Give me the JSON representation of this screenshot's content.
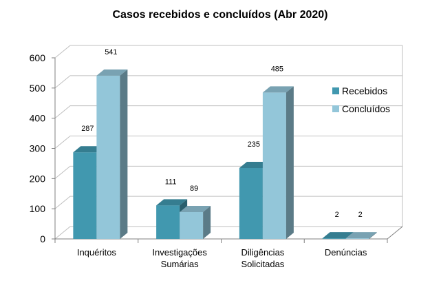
{
  "chart_data": {
    "type": "bar",
    "title": "Casos recebidos e concluídos (Abr 2020)",
    "categories": [
      [
        "Inquéritos"
      ],
      [
        "Investigações",
        "Sumárias"
      ],
      [
        "Diligências",
        "Solicitadas"
      ],
      [
        "Denúncias"
      ]
    ],
    "series": [
      {
        "name": "Recebidos",
        "values": [
          287,
          111,
          235,
          2
        ],
        "color": "#4198AF"
      },
      {
        "name": "Concluídos",
        "values": [
          541,
          89,
          485,
          2
        ],
        "color": "#93C6D9"
      }
    ],
    "ylim": [
      0,
      600
    ],
    "yticks": [
      0,
      100,
      200,
      300,
      400,
      500,
      600
    ],
    "grid": true,
    "legend": "right"
  }
}
